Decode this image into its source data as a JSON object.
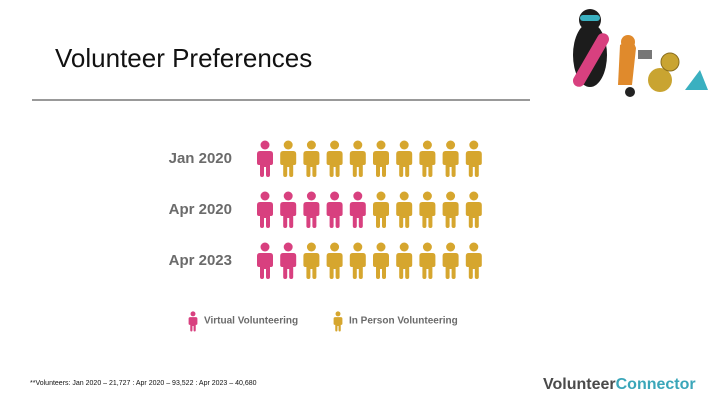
{
  "chart_data": {
    "type": "pictograph",
    "title": "Volunteer Preferences",
    "categories": [
      "Jan 2020",
      "Apr 2020",
      "Apr 2023"
    ],
    "series": [
      {
        "name": "Virtual Volunteering",
        "color": "#d8407f",
        "values": [
          1,
          5,
          2
        ]
      },
      {
        "name": "In Person Volunteering",
        "color": "#d6a62e",
        "values": [
          9,
          5,
          8
        ]
      }
    ]
  },
  "footnote": "**Volunteers: Jan 2020 – 21,727 : Apr 2020 – 93,522 : Apr 2023 – 40,680",
  "logo": {
    "first": "Volunteer",
    "second": "Connector"
  }
}
